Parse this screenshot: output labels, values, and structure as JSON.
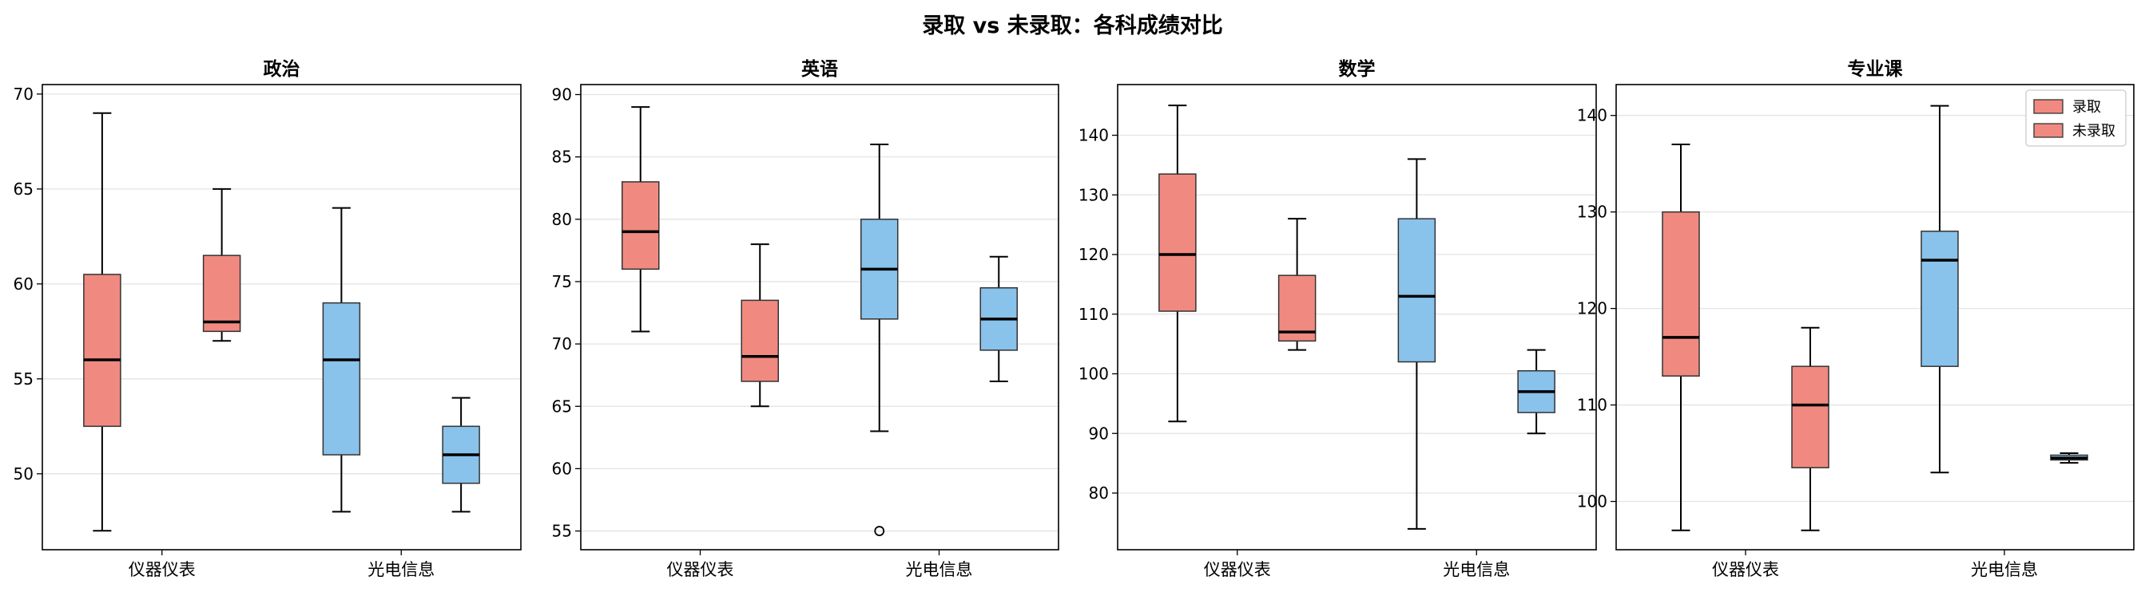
{
  "suptitle": "录取 vs 未录取：各科成绩对比",
  "colors": {
    "admitted_fill": "#F08A80",
    "not_admitted_fill": "#89C2EB",
    "box_edge": "#333333",
    "median": "#000000",
    "grid": "#e3e3e3"
  },
  "legend": {
    "placement": "top-right of last panel",
    "entries": [
      "录取",
      "未录取"
    ]
  },
  "chart_data": [
    {
      "type": "box",
      "title": "政治",
      "categories": [
        "仪器仪表",
        "光电信息"
      ],
      "ylim": [
        46,
        70.5
      ],
      "yticks": [
        50,
        55,
        60,
        65,
        70
      ],
      "grid": "y",
      "boxes": [
        {
          "category": "仪器仪表",
          "fill": "#F08A80",
          "whislo": 47,
          "q1": 52.5,
          "median": 56,
          "q3": 60.5,
          "whishi": 69,
          "fliers": []
        },
        {
          "category": "仪器仪表",
          "fill": "#F08A80",
          "whislo": 57,
          "q1": 57.5,
          "median": 58,
          "q3": 61.5,
          "whishi": 65,
          "fliers": []
        },
        {
          "category": "光电信息",
          "fill": "#89C2EB",
          "whislo": 48,
          "q1": 51,
          "median": 56,
          "q3": 59,
          "whishi": 64,
          "fliers": []
        },
        {
          "category": "光电信息",
          "fill": "#89C2EB",
          "whislo": 48,
          "q1": 49.5,
          "median": 51,
          "q3": 52.5,
          "whishi": 54,
          "fliers": []
        }
      ]
    },
    {
      "type": "box",
      "title": "英语",
      "categories": [
        "仪器仪表",
        "光电信息"
      ],
      "ylim": [
        53.5,
        90.8
      ],
      "yticks": [
        55,
        60,
        65,
        70,
        75,
        80,
        85,
        90
      ],
      "grid": "y",
      "boxes": [
        {
          "category": "仪器仪表",
          "fill": "#F08A80",
          "whislo": 71,
          "q1": 76,
          "median": 79,
          "q3": 83,
          "whishi": 89,
          "fliers": []
        },
        {
          "category": "仪器仪表",
          "fill": "#F08A80",
          "whislo": 65,
          "q1": 67,
          "median": 69,
          "q3": 73.5,
          "whishi": 78,
          "fliers": []
        },
        {
          "category": "光电信息",
          "fill": "#89C2EB",
          "whislo": 63,
          "q1": 72,
          "median": 76,
          "q3": 80,
          "whishi": 86,
          "fliers": [
            55
          ]
        },
        {
          "category": "光电信息",
          "fill": "#89C2EB",
          "whislo": 67,
          "q1": 69.5,
          "median": 72,
          "q3": 74.5,
          "whishi": 77,
          "fliers": []
        }
      ]
    },
    {
      "type": "box",
      "title": "数学",
      "categories": [
        "仪器仪表",
        "光电信息"
      ],
      "ylim": [
        70.5,
        148.5
      ],
      "yticks": [
        80,
        90,
        100,
        110,
        120,
        130,
        140
      ],
      "grid": "y",
      "boxes": [
        {
          "category": "仪器仪表",
          "fill": "#F08A80",
          "whislo": 92,
          "q1": 110.5,
          "median": 120,
          "q3": 133.5,
          "whishi": 145,
          "fliers": []
        },
        {
          "category": "仪器仪表",
          "fill": "#F08A80",
          "whislo": 104,
          "q1": 105.5,
          "median": 107,
          "q3": 116.5,
          "whishi": 126,
          "fliers": []
        },
        {
          "category": "光电信息",
          "fill": "#89C2EB",
          "whislo": 74,
          "q1": 102,
          "median": 113,
          "q3": 126,
          "whishi": 136,
          "fliers": []
        },
        {
          "category": "光电信息",
          "fill": "#89C2EB",
          "whislo": 90,
          "q1": 93.5,
          "median": 97,
          "q3": 100.5,
          "whishi": 104,
          "fliers": []
        }
      ]
    },
    {
      "type": "box",
      "title": "专业课",
      "categories": [
        "仪器仪表",
        "光电信息"
      ],
      "ylim": [
        95,
        143.2
      ],
      "yticks": [
        100,
        110,
        120,
        130,
        140
      ],
      "grid": "y",
      "boxes": [
        {
          "category": "仪器仪表",
          "fill": "#F08A80",
          "whislo": 97,
          "q1": 113,
          "median": 117,
          "q3": 130,
          "whishi": 137,
          "fliers": []
        },
        {
          "category": "仪器仪表",
          "fill": "#F08A80",
          "whislo": 97,
          "q1": 103.5,
          "median": 110,
          "q3": 114,
          "whishi": 118,
          "fliers": []
        },
        {
          "category": "光电信息",
          "fill": "#89C2EB",
          "whislo": 103,
          "q1": 114,
          "median": 125,
          "q3": 128,
          "whishi": 141,
          "fliers": []
        },
        {
          "category": "光电信息",
          "fill": "#89C2EB",
          "whislo": 104,
          "q1": 104.3,
          "median": 104.5,
          "q3": 104.8,
          "whishi": 105,
          "fliers": []
        }
      ]
    }
  ]
}
